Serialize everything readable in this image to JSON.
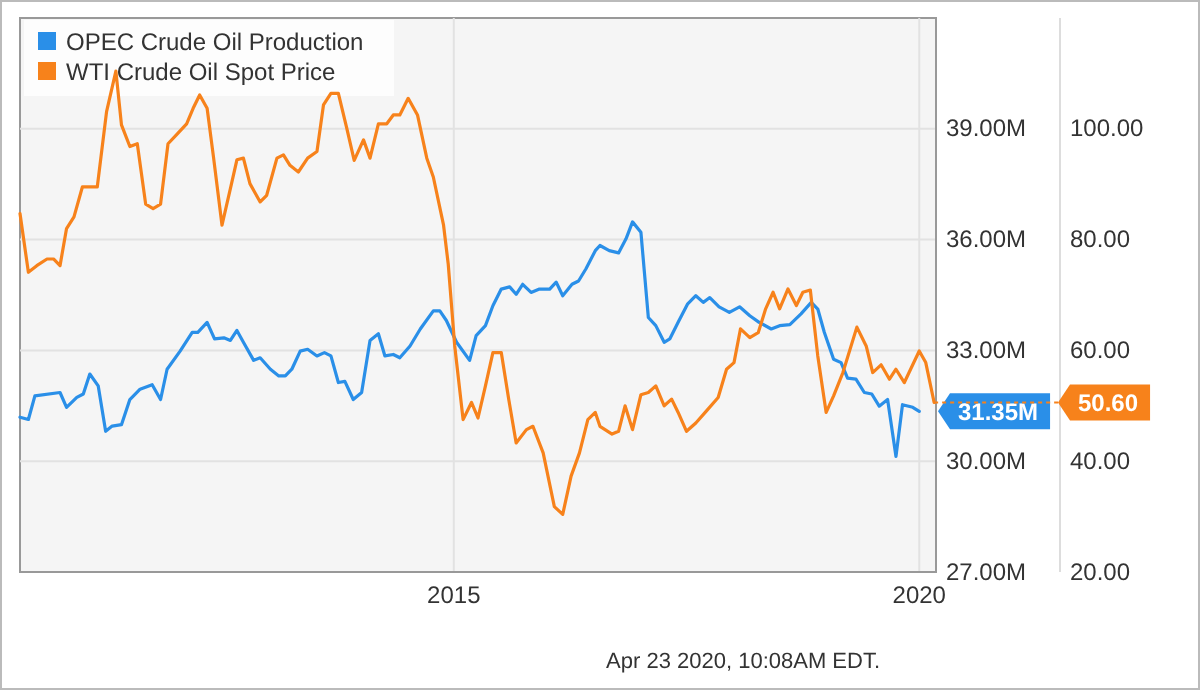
{
  "chart_data": {
    "type": "line",
    "annotations": [
      "Apr 23 2020, 10:08AM EDT."
    ],
    "xlim": [
      2010.34,
      2020.18
    ],
    "xticks": [
      2015,
      2020
    ],
    "ylim": [
      27,
      42
    ],
    "yticks": [
      {
        "value": 27,
        "label": "27.00M"
      },
      {
        "value": 30,
        "label": "30.00M"
      },
      {
        "value": 33,
        "label": "33.00M"
      },
      {
        "value": 36,
        "label": "36.00M"
      },
      {
        "value": 39,
        "label": "39.00M"
      }
    ],
    "y2lim": [
      20,
      120
    ],
    "y2ticks": [
      {
        "value": 20,
        "label": "20.00"
      },
      {
        "value": 40,
        "label": "40.00"
      },
      {
        "value": 60,
        "label": "60.00"
      },
      {
        "value": 80,
        "label": "80.00"
      },
      {
        "value": 100,
        "label": "100.00"
      }
    ],
    "grid": true,
    "legend": "top left",
    "series": [
      {
        "name": "OPEC Crude Oil Production",
        "color": "#2a8fe8",
        "x": [
          2010.34,
          2010.43,
          2010.5,
          2010.77,
          2010.84,
          2010.95,
          2011.02,
          2011.09,
          2011.18,
          2011.26,
          2011.33,
          2011.43,
          2011.52,
          2011.63,
          2011.76,
          2011.85,
          2011.92,
          2012.06,
          2012.19,
          2012.25,
          2012.35,
          2012.43,
          2012.53,
          2012.6,
          2012.67,
          2012.74,
          2012.85,
          2012.92,
          2013.03,
          2013.12,
          2013.19,
          2013.26,
          2013.35,
          2013.43,
          2013.53,
          2013.61,
          2013.68,
          2013.76,
          2013.83,
          2013.92,
          2014.01,
          2014.1,
          2014.19,
          2014.26,
          2014.35,
          2014.42,
          2014.53,
          2014.64,
          2014.78,
          2014.85,
          2014.92,
          2015.03,
          2015.17,
          2015.24,
          2015.34,
          2015.42,
          2015.51,
          2015.6,
          2015.67,
          2015.74,
          2015.83,
          2015.92,
          2016.03,
          2016.1,
          2016.17,
          2016.27,
          2016.34,
          2016.42,
          2016.52,
          2016.57,
          2016.67,
          2016.77,
          2016.85,
          2016.92,
          2017.01,
          2017.09,
          2017.17,
          2017.26,
          2017.32,
          2017.41,
          2017.51,
          2017.6,
          2017.68,
          2017.75,
          2017.85,
          2017.96,
          2018.07,
          2018.18,
          2018.28,
          2018.41,
          2018.5,
          2018.61,
          2018.73,
          2018.84,
          2018.91,
          2018.98,
          2019.08,
          2019.16,
          2019.23,
          2019.32,
          2019.41,
          2019.49,
          2019.57,
          2019.66,
          2019.75,
          2019.82,
          2019.93,
          2020.0
        ],
        "values": [
          31.19,
          31.13,
          31.77,
          31.86,
          31.46,
          31.73,
          31.82,
          32.36,
          32.04,
          30.81,
          30.95,
          30.99,
          31.67,
          31.95,
          32.07,
          31.67,
          32.49,
          32.98,
          33.49,
          33.49,
          33.76,
          33.31,
          33.34,
          33.27,
          33.54,
          33.22,
          32.73,
          32.8,
          32.49,
          32.31,
          32.31,
          32.49,
          32.98,
          33.03,
          32.85,
          32.94,
          32.85,
          32.13,
          32.16,
          31.67,
          31.86,
          33.27,
          33.45,
          32.85,
          32.89,
          32.8,
          33.12,
          33.58,
          34.07,
          34.07,
          33.81,
          33.22,
          32.73,
          33.4,
          33.67,
          34.21,
          34.66,
          34.72,
          34.52,
          34.79,
          34.57,
          34.66,
          34.66,
          34.85,
          34.48,
          34.79,
          34.88,
          35.21,
          35.7,
          35.84,
          35.7,
          35.64,
          36.02,
          36.48,
          36.2,
          33.89,
          33.67,
          33.22,
          33.31,
          33.76,
          34.25,
          34.48,
          34.3,
          34.43,
          34.18,
          34.03,
          34.18,
          33.94,
          33.76,
          33.58,
          33.67,
          33.7,
          33.99,
          34.3,
          34.12,
          33.49,
          32.76,
          32.67,
          32.25,
          32.22,
          31.86,
          31.82,
          31.49,
          31.67,
          30.13,
          31.53,
          31.46,
          31.35
        ],
        "value_labels": [
          null,
          null,
          null,
          null,
          null,
          null,
          null,
          null,
          null,
          null,
          null,
          null,
          null,
          null,
          null,
          null,
          null,
          null,
          null,
          null,
          null,
          null,
          null,
          null,
          null,
          null,
          null,
          null,
          null,
          null,
          null,
          null,
          null,
          null,
          null,
          null,
          null,
          null,
          null,
          null,
          null,
          null,
          null,
          null,
          null,
          null,
          null,
          null,
          null,
          null,
          null,
          null,
          null,
          null,
          null,
          null,
          null,
          null,
          null,
          null,
          null,
          null,
          null,
          null,
          null,
          null,
          null,
          null,
          null,
          null,
          null,
          null,
          null,
          null,
          null,
          null,
          null,
          null,
          null,
          null,
          null,
          null,
          null,
          null,
          null,
          null,
          null,
          null,
          null,
          null,
          null,
          null,
          null,
          null,
          null,
          null,
          null,
          null,
          null,
          null,
          null,
          null,
          null,
          null,
          null,
          null,
          null,
          "31.35M"
        ]
      },
      {
        "name": "WTI Crude Oil Spot Price",
        "color": "#f7821b",
        "axis": "y2",
        "x": [
          2010.34,
          2010.43,
          2010.52,
          2010.63,
          2010.7,
          2010.77,
          2010.84,
          2010.92,
          2011.01,
          2011.17,
          2011.27,
          2011.37,
          2011.43,
          2011.52,
          2011.6,
          2011.69,
          2011.77,
          2011.85,
          2011.93,
          2012.02,
          2012.13,
          2012.2,
          2012.27,
          2012.35,
          2012.42,
          2012.51,
          2012.6,
          2012.67,
          2012.74,
          2012.81,
          2012.92,
          2012.99,
          2013.1,
          2013.17,
          2013.24,
          2013.33,
          2013.43,
          2013.53,
          2013.6,
          2013.68,
          2013.76,
          2013.85,
          2013.93,
          2014.03,
          2014.1,
          2014.19,
          2014.28,
          2014.35,
          2014.42,
          2014.51,
          2014.61,
          2014.71,
          2014.78,
          2014.89,
          2014.94,
          2015.01,
          2015.1,
          2015.19,
          2015.26,
          2015.34,
          2015.42,
          2015.51,
          2015.59,
          2015.67,
          2015.78,
          2015.85,
          2015.96,
          2016.08,
          2016.17,
          2016.26,
          2016.35,
          2016.44,
          2016.52,
          2016.57,
          2016.7,
          2016.77,
          2016.84,
          2016.92,
          2017.01,
          2017.09,
          2017.17,
          2017.26,
          2017.34,
          2017.41,
          2017.5,
          2017.6,
          2017.71,
          2017.84,
          2017.93,
          2018.01,
          2018.08,
          2018.18,
          2018.27,
          2018.35,
          2018.43,
          2018.5,
          2018.59,
          2018.68,
          2018.75,
          2018.83,
          2018.91,
          2019.0,
          2019.08,
          2019.18,
          2019.33,
          2019.43,
          2019.5,
          2019.59,
          2019.68,
          2019.75,
          2019.84,
          2019.93,
          2020.0,
          2020.07,
          2020.16
        ],
        "values": [
          84.7,
          74.1,
          75.3,
          76.5,
          76.5,
          75.3,
          82.0,
          84.1,
          89.5,
          89.5,
          103.1,
          110.4,
          100.7,
          96.8,
          97.3,
          86.4,
          85.6,
          86.4,
          97.3,
          98.9,
          100.9,
          103.7,
          106.1,
          103.7,
          94.7,
          82.6,
          89.2,
          94.4,
          94.7,
          90.1,
          86.8,
          88.0,
          94.7,
          95.3,
          93.4,
          92.2,
          94.7,
          95.9,
          104.3,
          106.4,
          106.4,
          100.1,
          94.3,
          98.0,
          94.7,
          100.9,
          100.9,
          102.5,
          102.5,
          105.5,
          102.5,
          94.7,
          91.3,
          82.6,
          75.6,
          60.8,
          47.5,
          50.6,
          47.8,
          53.6,
          59.6,
          59.6,
          51.2,
          43.3,
          45.7,
          46.3,
          41.5,
          31.8,
          30.4,
          37.3,
          41.5,
          47.5,
          48.8,
          46.3,
          44.9,
          45.4,
          50.0,
          45.7,
          52.0,
          52.4,
          53.6,
          50.0,
          51.2,
          48.8,
          45.4,
          46.9,
          49.0,
          51.5,
          56.6,
          57.8,
          63.9,
          62.3,
          63.2,
          67.5,
          70.5,
          67.5,
          71.1,
          68.1,
          70.5,
          70.9,
          59.0,
          48.8,
          51.8,
          56.0,
          64.2,
          60.8,
          56.0,
          57.4,
          54.8,
          56.6,
          54.2,
          57.4,
          59.9,
          57.8,
          50.6
        ],
        "value_labels": [
          null,
          null,
          null,
          null,
          null,
          null,
          null,
          null,
          null,
          null,
          null,
          null,
          null,
          null,
          null,
          null,
          null,
          null,
          null,
          null,
          null,
          null,
          null,
          null,
          null,
          null,
          null,
          null,
          null,
          null,
          null,
          null,
          null,
          null,
          null,
          null,
          null,
          null,
          null,
          null,
          null,
          null,
          null,
          null,
          null,
          null,
          null,
          null,
          null,
          null,
          null,
          null,
          null,
          null,
          null,
          null,
          null,
          null,
          null,
          null,
          null,
          null,
          null,
          null,
          null,
          null,
          null,
          null,
          null,
          null,
          null,
          null,
          null,
          null,
          null,
          null,
          null,
          null,
          null,
          null,
          null,
          null,
          null,
          null,
          null,
          null,
          null,
          null,
          null,
          null,
          null,
          null,
          null,
          null,
          null,
          null,
          null,
          null,
          null,
          null,
          null,
          null,
          null,
          null,
          null,
          null,
          null,
          null,
          null,
          null,
          null,
          null,
          null,
          null,
          "50.60"
        ]
      }
    ]
  }
}
